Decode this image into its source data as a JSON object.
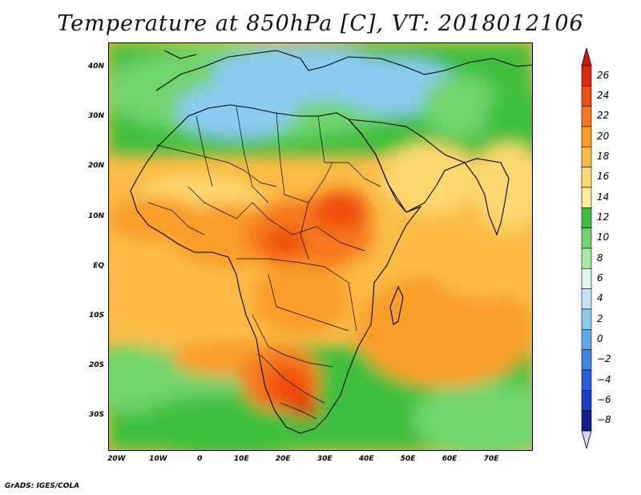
{
  "title": "Temperature at 850hPa [C], VT: 2018012106",
  "footer": "GrADS: IGES/COLA",
  "map": {
    "lon_range": [
      -22,
      80
    ],
    "lat_range": [
      -37,
      45
    ],
    "lat_labels": [
      {
        "lat": 40,
        "text": "40N"
      },
      {
        "lat": 30,
        "text": "30N"
      },
      {
        "lat": 20,
        "text": "20N"
      },
      {
        "lat": 10,
        "text": "10N"
      },
      {
        "lat": 0,
        "text": "EQ"
      },
      {
        "lat": -10,
        "text": "10S"
      },
      {
        "lat": -20,
        "text": "20S"
      },
      {
        "lat": -30,
        "text": "30S"
      }
    ],
    "lon_labels": [
      {
        "lon": -20,
        "text": "20W"
      },
      {
        "lon": -10,
        "text": "10W"
      },
      {
        "lon": 0,
        "text": "0"
      },
      {
        "lon": 10,
        "text": "10E"
      },
      {
        "lon": 20,
        "text": "20E"
      },
      {
        "lon": 30,
        "text": "30E"
      },
      {
        "lon": 40,
        "text": "40E"
      },
      {
        "lon": 50,
        "text": "50E"
      },
      {
        "lon": 60,
        "text": "60E"
      },
      {
        "lon": 70,
        "text": "70E"
      }
    ]
  },
  "colorbar": {
    "labels": [
      "26",
      "24",
      "22",
      "20",
      "18",
      "16",
      "14",
      "12",
      "10",
      "8",
      "6",
      "4",
      "2",
      "0",
      "−2",
      "−4",
      "−6",
      "−8"
    ],
    "colors": [
      "#dd2a0f",
      "#f04d10",
      "#f6781a",
      "#f99d27",
      "#fbbb44",
      "#fdd86e",
      "#fcec9c",
      "#3cbf3c",
      "#6fd46c",
      "#a9e7a1",
      "#e0f6ee",
      "#bfe4f7",
      "#8ccaf2",
      "#5ea8ea",
      "#3b85e0",
      "#2660d6",
      "#1640bf",
      "#0c1f8c"
    ],
    "top_arrow": "#d11a06",
    "bottom_arrow": "#d9d3f5"
  }
}
